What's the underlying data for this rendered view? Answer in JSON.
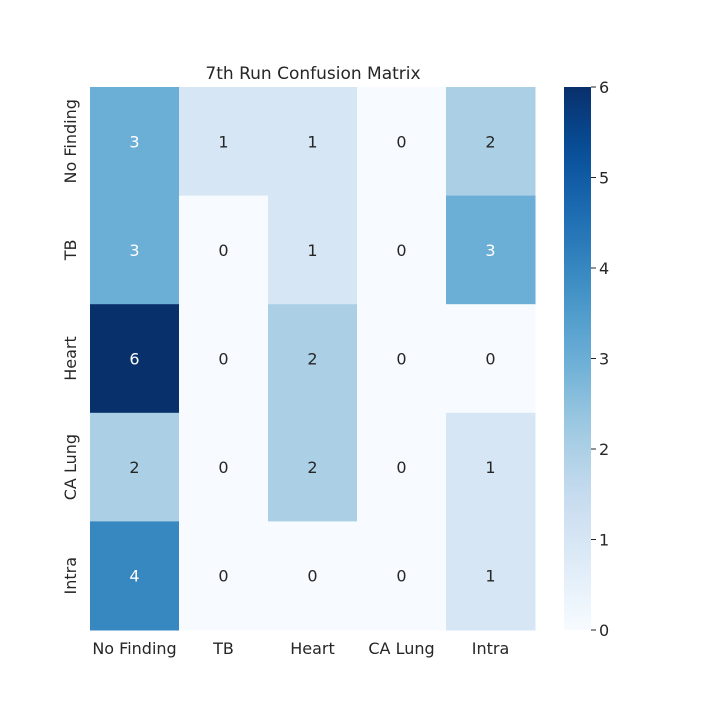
{
  "chart_data": {
    "type": "heatmap",
    "title": "7th Run Confusion Matrix",
    "x_labels": [
      "No Finding",
      "TB",
      "Heart",
      "CA Lung",
      "Intra"
    ],
    "y_labels": [
      "No Finding",
      "TB",
      "Heart",
      "CA Lung",
      "Intra"
    ],
    "values": [
      [
        3,
        1,
        1,
        0,
        2
      ],
      [
        3,
        0,
        1,
        0,
        3
      ],
      [
        6,
        0,
        2,
        0,
        0
      ],
      [
        2,
        0,
        2,
        0,
        1
      ],
      [
        4,
        0,
        0,
        0,
        1
      ]
    ],
    "vmin": 0,
    "vmax": 6,
    "colormap": "Blues",
    "colorbar_ticks": [
      "0",
      "1",
      "2",
      "3",
      "4",
      "5",
      "6"
    ],
    "annotation_color_dark": "#262626",
    "annotation_color_light": "#ffffff"
  }
}
